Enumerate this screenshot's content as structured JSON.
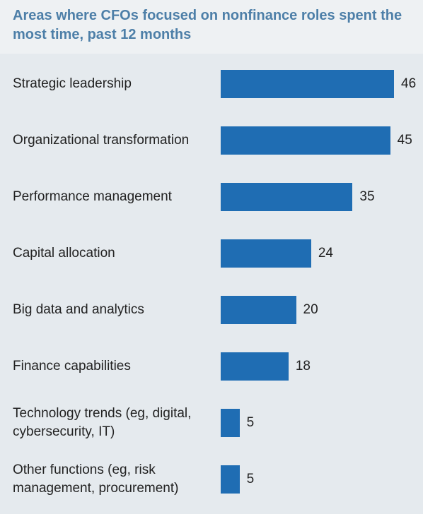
{
  "chart_data": {
    "type": "bar",
    "orientation": "horizontal",
    "title": "Areas where CFOs focused on nonfinance roles spent the most time, past 12 months",
    "categories": [
      "Strategic leadership",
      "Organizational transformation",
      "Performance management",
      "Capital allocation",
      "Big data and analytics",
      "Finance capabilities",
      "Technology trends (eg, digital, cybersecurity, IT)",
      "Other functions (eg, risk management, procurement)"
    ],
    "values": [
      46,
      45,
      35,
      24,
      20,
      18,
      5,
      5
    ],
    "color": "#1f6db3"
  }
}
